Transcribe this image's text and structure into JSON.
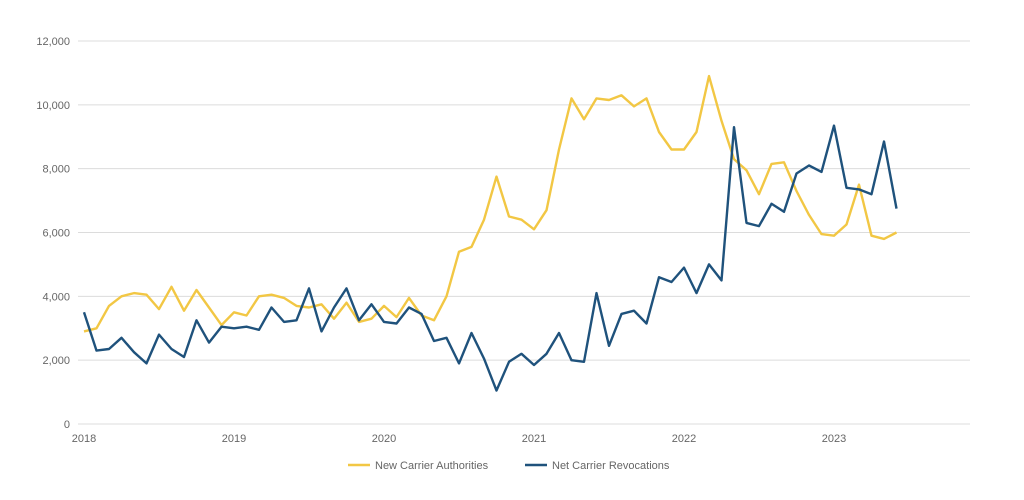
{
  "chart_data": {
    "type": "line",
    "title": "",
    "xlabel": "",
    "ylabel": "",
    "ylim": [
      0,
      12000
    ],
    "yticks": [
      0,
      2000,
      4000,
      6000,
      8000,
      10000,
      12000
    ],
    "ytick_labels": [
      "0",
      "2,000",
      "4,000",
      "6,000",
      "8,000",
      "10,000",
      "12,000"
    ],
    "xtick_labels": [
      "2018",
      "2019",
      "2020",
      "2021",
      "2022",
      "2023"
    ],
    "x_start": "2018-01",
    "x_frequency": "monthly",
    "grid": "horizontal",
    "legend_position": "bottom",
    "series": [
      {
        "name": "New Carrier Authorities",
        "color": "#F2C744",
        "values": [
          2900,
          3000,
          3700,
          4000,
          4100,
          4050,
          3600,
          4300,
          3550,
          4200,
          3650,
          3100,
          3500,
          3400,
          4000,
          4050,
          3950,
          3700,
          3650,
          3750,
          3300,
          3800,
          3200,
          3300,
          3700,
          3350,
          3950,
          3400,
          3250,
          4000,
          5400,
          5550,
          6400,
          7750,
          6500,
          6400,
          6100,
          6700,
          8600,
          10200,
          9550,
          10200,
          10150,
          10300,
          9950,
          10200,
          9150,
          8600,
          8600,
          9150,
          10900,
          9500,
          8300,
          7950,
          7200,
          8150,
          8200,
          7300,
          6550,
          5950,
          5900,
          6250,
          7500,
          5900,
          5800,
          6000
        ]
      },
      {
        "name": "Net Carrier Revocations",
        "color": "#1F527C",
        "values": [
          3500,
          2300,
          2350,
          2700,
          2250,
          1900,
          2800,
          2350,
          2100,
          3250,
          2550,
          3050,
          3000,
          3050,
          2950,
          3650,
          3200,
          3250,
          4250,
          2900,
          3650,
          4250,
          3250,
          3750,
          3200,
          3150,
          3650,
          3450,
          2600,
          2700,
          1900,
          2850,
          2050,
          1050,
          1950,
          2200,
          1850,
          2200,
          2850,
          2000,
          1950,
          4100,
          2450,
          3450,
          3550,
          3150,
          4600,
          4450,
          4900,
          4100,
          5000,
          4500,
          9300,
          6300,
          6200,
          6900,
          6650,
          7850,
          8100,
          7900,
          9350,
          7400,
          7350,
          7200,
          8850,
          6750
        ]
      }
    ]
  }
}
